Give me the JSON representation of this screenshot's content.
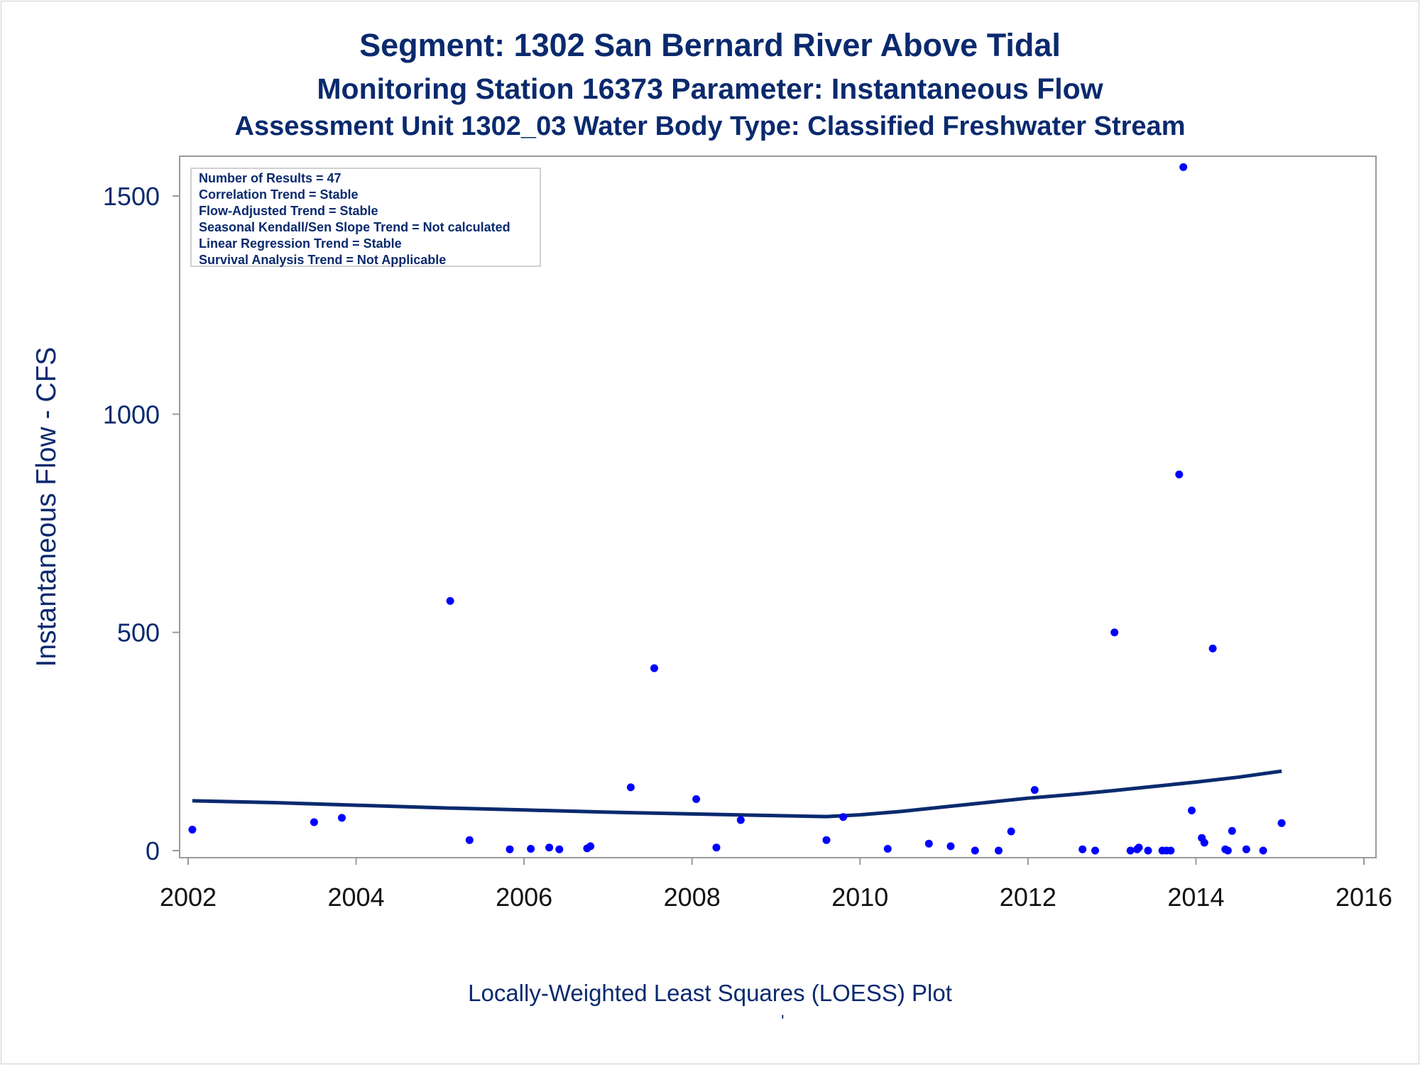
{
  "title": {
    "line1": "Segment: 1302  San Bernard River Above Tidal",
    "line2": "Monitoring Station 16373 Parameter: Instantaneous Flow",
    "line3": "Assessment Unit 1302_03   Water Body Type: Classified Freshwater Stream"
  },
  "stats_box": {
    "lines": [
      "Number of Results = 47",
      "Correlation Trend = Stable",
      "Flow-Adjusted Trend = Stable",
      "Seasonal Kendall/Sen Slope Trend = Not calculated",
      "Linear Regression Trend = Stable",
      "Survival Analysis Trend = Not Applicable"
    ]
  },
  "footnote": "Locally-Weighted Least Squares (LOESS) Plot",
  "footnote_mark": "'",
  "colors": {
    "text": "#0a2a6e",
    "points": "#0000ff",
    "loess_line": "#0a2a6e",
    "axis": "#9a9a9a"
  },
  "chart_data": {
    "type": "scatter",
    "title": "Segment: 1302  San Bernard River Above Tidal",
    "xlabel": "",
    "ylabel": "Instantaneous Flow - CFS",
    "xlim": [
      2002,
      2016
    ],
    "ylim": [
      -15,
      1600
    ],
    "xticks": [
      2002,
      2004,
      2006,
      2008,
      2010,
      2012,
      2014,
      2016
    ],
    "yticks": [
      0,
      500,
      1000,
      1500
    ],
    "grid": false,
    "points": [
      [
        2002.05,
        48
      ],
      [
        2003.5,
        65
      ],
      [
        2003.83,
        75
      ],
      [
        2005.12,
        572
      ],
      [
        2005.35,
        24
      ],
      [
        2005.83,
        3
      ],
      [
        2006.08,
        4
      ],
      [
        2006.3,
        7
      ],
      [
        2006.42,
        3
      ],
      [
        2006.75,
        5
      ],
      [
        2006.79,
        10
      ],
      [
        2007.27,
        145
      ],
      [
        2007.55,
        418
      ],
      [
        2008.05,
        118
      ],
      [
        2008.29,
        7
      ],
      [
        2008.58,
        70
      ],
      [
        2009.6,
        24
      ],
      [
        2009.8,
        77
      ],
      [
        2010.33,
        4
      ],
      [
        2010.82,
        16
      ],
      [
        2011.08,
        10
      ],
      [
        2011.37,
        0
      ],
      [
        2011.65,
        0
      ],
      [
        2011.8,
        44
      ],
      [
        2012.08,
        139
      ],
      [
        2012.65,
        3
      ],
      [
        2012.8,
        0
      ],
      [
        2013.03,
        500
      ],
      [
        2013.22,
        0
      ],
      [
        2013.3,
        3
      ],
      [
        2013.32,
        7
      ],
      [
        2013.43,
        0
      ],
      [
        2013.6,
        0
      ],
      [
        2013.65,
        0
      ],
      [
        2013.7,
        0
      ],
      [
        2013.8,
        862
      ],
      [
        2013.85,
        1566
      ],
      [
        2013.95,
        92
      ],
      [
        2014.07,
        29
      ],
      [
        2014.1,
        18
      ],
      [
        2014.2,
        463
      ],
      [
        2014.35,
        3
      ],
      [
        2014.38,
        0
      ],
      [
        2014.43,
        45
      ],
      [
        2014.6,
        3
      ],
      [
        2014.8,
        0
      ],
      [
        2015.02,
        63
      ]
    ],
    "loess": [
      [
        2002.05,
        114
      ],
      [
        2003.0,
        110
      ],
      [
        2004.0,
        104
      ],
      [
        2005.0,
        98
      ],
      [
        2006.0,
        93
      ],
      [
        2007.0,
        88
      ],
      [
        2008.0,
        84
      ],
      [
        2009.0,
        80
      ],
      [
        2009.6,
        78
      ],
      [
        2010.0,
        82
      ],
      [
        2010.5,
        90
      ],
      [
        2011.0,
        100
      ],
      [
        2011.5,
        110
      ],
      [
        2012.0,
        120
      ],
      [
        2012.5,
        128
      ],
      [
        2013.0,
        137
      ],
      [
        2013.5,
        147
      ],
      [
        2014.0,
        157
      ],
      [
        2014.5,
        168
      ],
      [
        2015.02,
        182
      ]
    ]
  }
}
